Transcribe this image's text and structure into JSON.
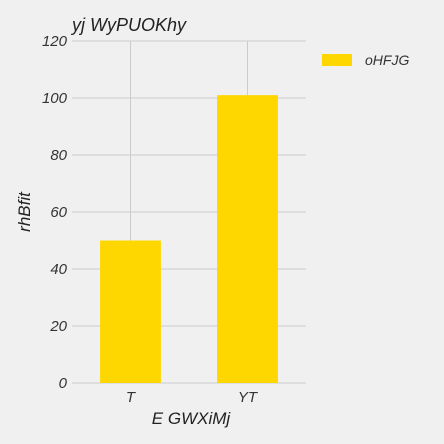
{
  "chart_data": {
    "type": "bar",
    "title": "yj WyPUOKhy",
    "xlabel": "E GWXiMj",
    "ylabel": "rhBfit",
    "categories": [
      "T",
      "YT"
    ],
    "series": [
      {
        "name": "oHFJG",
        "values": [
          50,
          101
        ],
        "color": "#ffd700"
      }
    ],
    "ylim": [
      0,
      120
    ],
    "yticks": [
      0,
      20,
      40,
      60,
      80,
      100,
      120
    ],
    "grid": true,
    "legend_position": "top-right"
  }
}
